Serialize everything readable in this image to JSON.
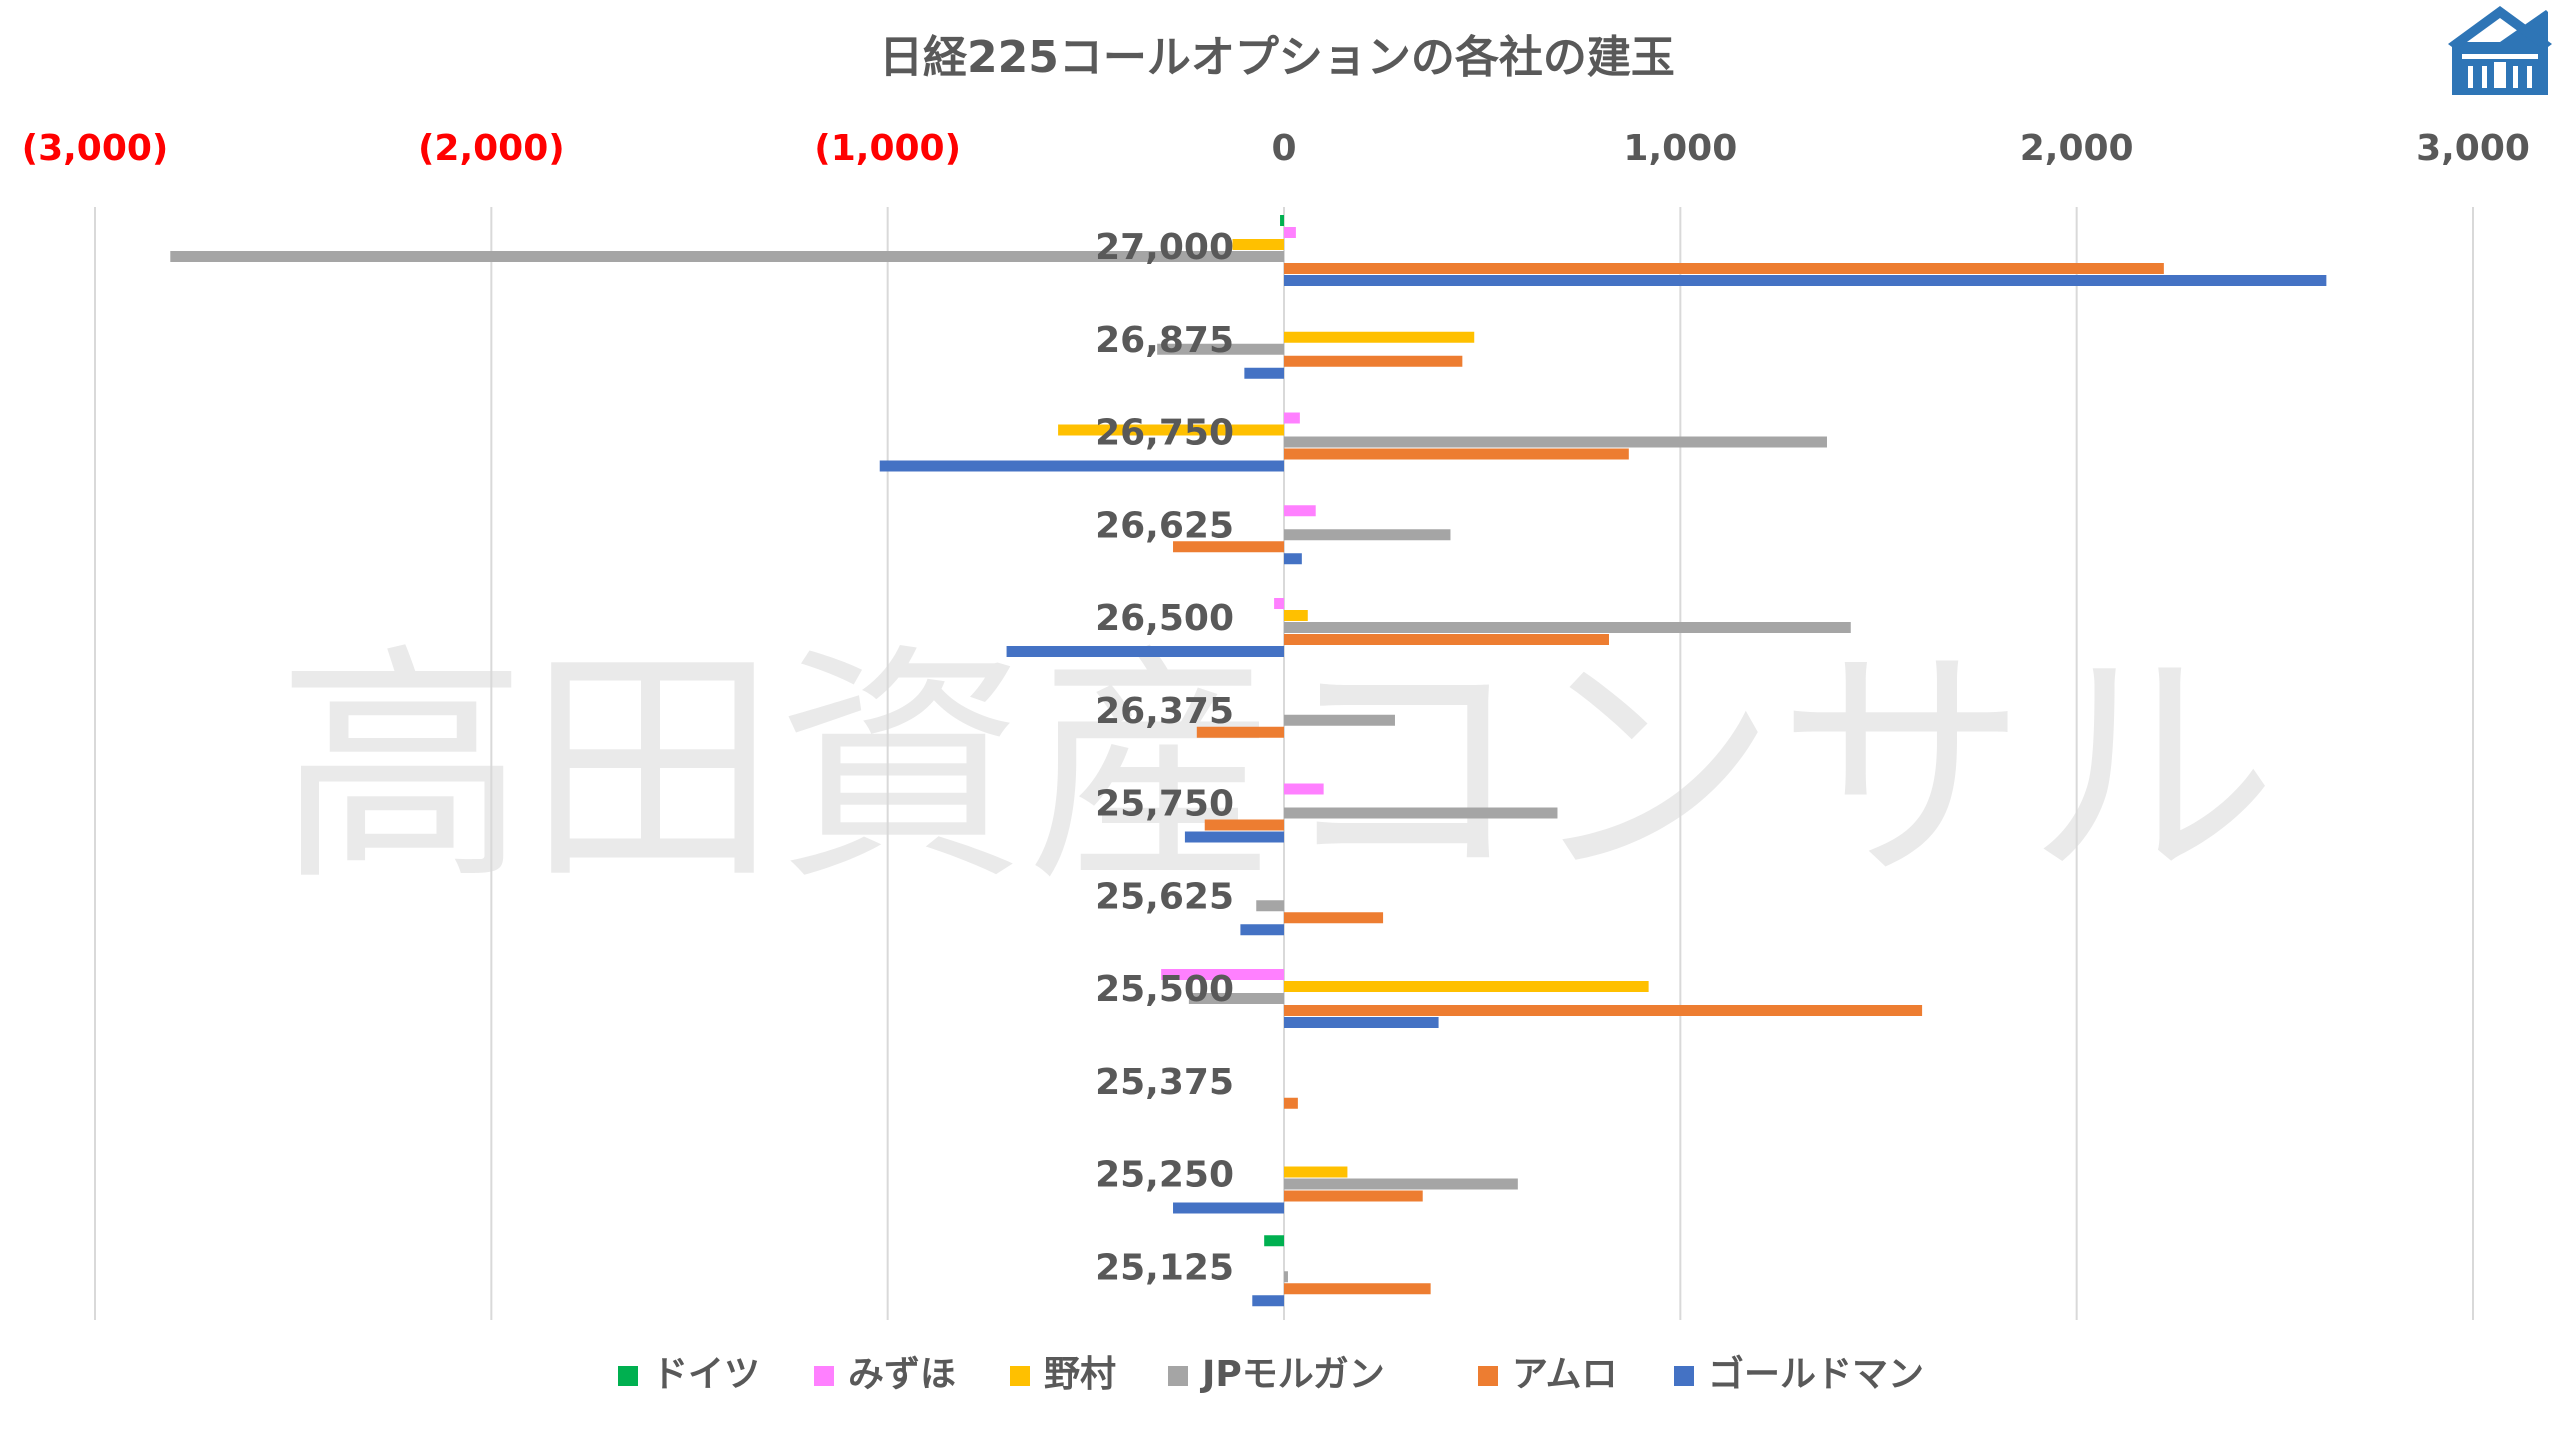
{
  "chart_data": {
    "type": "bar",
    "orientation": "horizontal",
    "title": "日経225コールオプションの各社の建玉",
    "watermark": "高田資産コンサル",
    "logo": "house-logo",
    "xlim": [
      -3000,
      3000
    ],
    "x_ticks": [
      {
        "value": -3000,
        "label": "(3,000)"
      },
      {
        "value": -2000,
        "label": "(2,000)"
      },
      {
        "value": -1000,
        "label": "(1,000)"
      },
      {
        "value": 0,
        "label": "0"
      },
      {
        "value": 1000,
        "label": "1,000"
      },
      {
        "value": 2000,
        "label": "2,000"
      },
      {
        "value": 3000,
        "label": "3,000"
      }
    ],
    "negative_tick_color": "#ff0000",
    "positive_tick_color": "#595959",
    "grid": "vertical",
    "legend_position": "bottom",
    "categories": [
      "27,000",
      "26,875",
      "26,750",
      "26,625",
      "26,500",
      "26,375",
      "25,750",
      "25,625",
      "25,500",
      "25,375",
      "25,250",
      "25,125"
    ],
    "series": [
      {
        "name": "ドイツ",
        "color": "#00b050",
        "values": [
          -10,
          0,
          0,
          0,
          0,
          0,
          0,
          0,
          0,
          0,
          0,
          -50
        ]
      },
      {
        "name": "みずほ",
        "color": "#ff80ff",
        "values": [
          30,
          0,
          40,
          80,
          -25,
          0,
          100,
          0,
          -310,
          0,
          0,
          0
        ]
      },
      {
        "name": "野村",
        "color": "#ffc000",
        "values": [
          -130,
          480,
          -570,
          0,
          60,
          0,
          0,
          0,
          920,
          0,
          160,
          0
        ]
      },
      {
        "name": "JPモルガン",
        "color": "#a5a5a5",
        "values": [
          -2810,
          -320,
          1370,
          420,
          1430,
          280,
          690,
          -70,
          -240,
          0,
          590,
          10
        ]
      },
      {
        "name": "アムロ",
        "color": "#ed7d31",
        "values": [
          2220,
          450,
          870,
          -280,
          820,
          -220,
          -200,
          250,
          1610,
          35,
          350,
          370
        ]
      },
      {
        "name": "ゴールドマン",
        "color": "#4472c4",
        "values": [
          2630,
          -100,
          -1020,
          45,
          -700,
          0,
          -250,
          -110,
          390,
          0,
          -280,
          -80
        ]
      }
    ]
  }
}
